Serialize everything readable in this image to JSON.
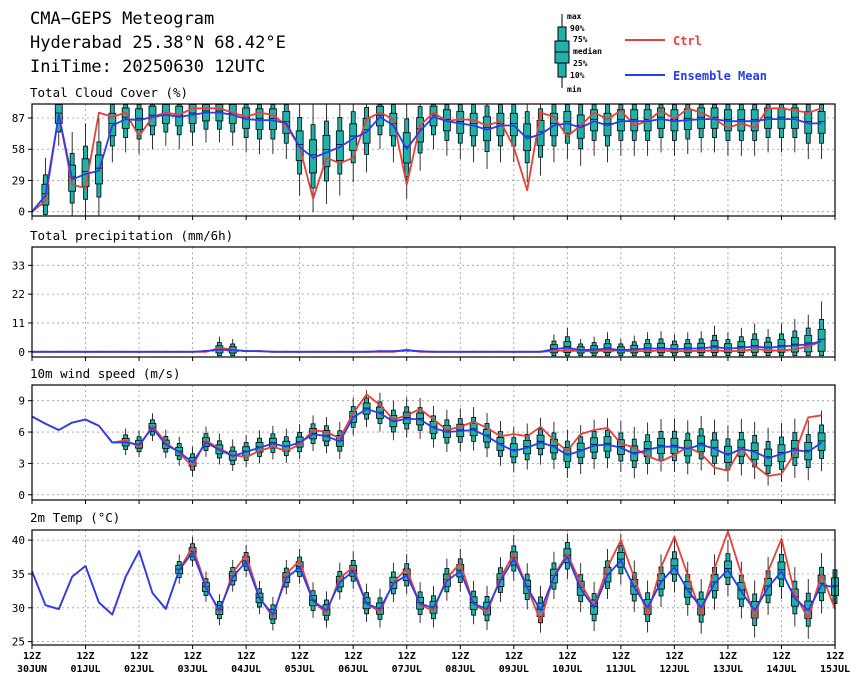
{
  "title": "CMA−GEPS Meteogram",
  "location": "Hyderabad 25.38°N 68.42°E",
  "init_time": "IniTime: 20250630 12UTC",
  "box_key": {
    "labels": [
      "max",
      "90%",
      "75%",
      "median",
      "25%",
      "10%",
      "min"
    ]
  },
  "legend": {
    "ctrl": {
      "label": "Ctrl",
      "color": "#e8403a"
    },
    "mean": {
      "label": "Ensemble Mean",
      "color": "#2a3cf0"
    }
  },
  "colors": {
    "box": "#20b2aa",
    "box_edge": "#000000",
    "grid": "#9a9a9a"
  },
  "x_axis": {
    "labels": [
      {
        "top": "12Z",
        "bottom": "30JUN"
      },
      {
        "top": "12Z",
        "bottom": "01JUL"
      },
      {
        "top": "12Z",
        "bottom": "02JUL"
      },
      {
        "top": "12Z",
        "bottom": "03JUL"
      },
      {
        "top": "12Z",
        "bottom": "04JUL"
      },
      {
        "top": "12Z",
        "bottom": "05JUL"
      },
      {
        "top": "12Z",
        "bottom": "06JUL"
      },
      {
        "top": "12Z",
        "bottom": "07JUL"
      },
      {
        "top": "12Z",
        "bottom": "08JUL"
      },
      {
        "top": "12Z",
        "bottom": "09JUL"
      },
      {
        "top": "12Z",
        "bottom": "10JUL"
      },
      {
        "top": "12Z",
        "bottom": "11JUL"
      },
      {
        "top": "12Z",
        "bottom": "12JUL"
      },
      {
        "top": "12Z",
        "bottom": "13JUL"
      },
      {
        "top": "12Z",
        "bottom": "14JUL"
      },
      {
        "top": "12Z",
        "bottom": "15JUL"
      }
    ]
  },
  "chart_data": [
    {
      "type": "box",
      "title": "Total Cloud Cover (%)",
      "ylim": [
        -4,
        100
      ],
      "yticks": [
        0,
        29,
        58,
        87
      ],
      "x_step_hours": 6,
      "first_box_step": 1,
      "series": [
        {
          "name": "Ctrl",
          "values": [
            0,
            10,
            90,
            25,
            22,
            92,
            88,
            92,
            70,
            88,
            92,
            90,
            96,
            96,
            96,
            92,
            88,
            92,
            90,
            80,
            60,
            12,
            50,
            45,
            50,
            86,
            92,
            86,
            25,
            80,
            92,
            84,
            86,
            85,
            80,
            84,
            60,
            20,
            92,
            88,
            70,
            80,
            92,
            86,
            94,
            80,
            84,
            94,
            86,
            96,
            92,
            86,
            78,
            82,
            78,
            96,
            96,
            94,
            92,
            96
          ]
        },
        {
          "name": "Ensemble Mean",
          "values": [
            0,
            15,
            90,
            30,
            35,
            38,
            80,
            86,
            85,
            88,
            90,
            88,
            90,
            92,
            92,
            90,
            86,
            85,
            85,
            82,
            60,
            50,
            55,
            60,
            68,
            74,
            88,
            80,
            58,
            75,
            88,
            84,
            82,
            80,
            76,
            80,
            80,
            68,
            72,
            80,
            82,
            78,
            84,
            80,
            84,
            84,
            84,
            86,
            84,
            85,
            86,
            86,
            84,
            84,
            84,
            86,
            86,
            86,
            82,
            82
          ]
        }
      ]
    },
    {
      "type": "box",
      "title": "Total precipitation (mm/6h)",
      "ylim": [
        -2,
        40
      ],
      "yticks": [
        0,
        11,
        22,
        33
      ],
      "x_step_hours": 6,
      "first_box_step": 1,
      "series": [
        {
          "name": "Ctrl",
          "values": [
            0,
            0,
            0,
            0,
            0,
            0,
            0,
            0,
            0,
            0,
            0,
            0,
            0,
            0,
            1.5,
            0.8,
            0.2,
            0.3,
            0,
            0,
            0,
            0,
            0,
            0,
            0,
            0,
            0,
            0,
            0.8,
            0,
            0,
            0,
            0,
            0,
            0,
            0,
            0,
            0,
            0,
            0.3,
            0.6,
            0.2,
            0.2,
            0.5,
            0.4,
            0.2,
            0.3,
            0.5,
            0.2,
            0.2,
            0.4,
            0.5,
            0.3,
            0.3,
            1.0,
            0.6,
            0.4,
            1.0,
            2.0,
            4.0
          ]
        },
        {
          "name": "Ensemble Mean",
          "values": [
            0,
            0,
            0,
            0,
            0,
            0,
            0,
            0,
            0,
            0,
            0,
            0,
            0,
            0.3,
            0.8,
            0.6,
            0.3,
            0.2,
            0,
            0,
            0,
            0,
            0,
            0,
            0,
            0,
            0.2,
            0.2,
            0.5,
            0.2,
            0,
            0,
            0,
            0,
            0,
            0,
            0,
            0,
            0,
            1.0,
            1.6,
            0.6,
            0.8,
            1.2,
            0.6,
            0.9,
            1.2,
            1.3,
            1.0,
            1.2,
            1.3,
            1.8,
            1.2,
            1.6,
            2.0,
            1.5,
            2.0,
            2.4,
            2.8,
            4.0
          ]
        }
      ]
    },
    {
      "type": "box",
      "title": "10m wind speed (m/s)",
      "ylim": [
        -0.5,
        10.5
      ],
      "yticks": [
        0,
        3,
        6,
        9
      ],
      "x_step_hours": 6,
      "first_box_step": 7,
      "series": [
        {
          "name": "Ctrl",
          "values": [
            7.5,
            6.8,
            6.2,
            6.9,
            7.2,
            6.6,
            5.0,
            5.2,
            4.6,
            6.6,
            5.0,
            4.0,
            2.7,
            5.2,
            4.4,
            3.8,
            3.6,
            4.2,
            4.6,
            4.2,
            4.8,
            6.2,
            6.0,
            5.4,
            7.8,
            9.6,
            8.6,
            7.2,
            7.6,
            8.2,
            7.2,
            6.2,
            6.5,
            7.0,
            6.4,
            5.6,
            5.8,
            5.6,
            6.5,
            5.2,
            4.2,
            5.8,
            6.2,
            6.4,
            4.9,
            4.5,
            3.7,
            3.2,
            3.8,
            4.6,
            3.9,
            2.6,
            2.3,
            4.5,
            2.8,
            1.8,
            2.0,
            4.0,
            7.4,
            7.6
          ]
        },
        {
          "name": "Ensemble Mean",
          "values": [
            7.5,
            6.8,
            6.2,
            6.9,
            7.2,
            6.6,
            5.0,
            5.0,
            4.8,
            6.4,
            4.8,
            4.1,
            3.1,
            5.0,
            4.3,
            3.7,
            4.1,
            4.5,
            4.9,
            4.6,
            5.0,
            5.8,
            5.6,
            5.1,
            7.4,
            8.2,
            7.8,
            7.0,
            7.3,
            7.2,
            6.4,
            6.0,
            6.1,
            6.2,
            5.6,
            4.8,
            4.2,
            4.5,
            5.0,
            4.6,
            3.8,
            4.2,
            4.7,
            4.8,
            4.5,
            3.9,
            4.3,
            4.6,
            4.6,
            4.4,
            4.8,
            4.4,
            3.8,
            4.4,
            4.1,
            3.5,
            3.9,
            4.3,
            4.1,
            5.0
          ]
        }
      ]
    },
    {
      "type": "box",
      "title": "2m Temp (°C)",
      "ylim": [
        24.5,
        41.5
      ],
      "yticks": [
        25,
        30,
        35,
        40
      ],
      "x_step_hours": 6,
      "first_box_step": 11,
      "series": [
        {
          "name": "Ctrl",
          "values": [
            35.4,
            30.4,
            29.8,
            34.6,
            36.2,
            30.8,
            29.0,
            34.6,
            38.4,
            32.2,
            29.9,
            35.6,
            39.0,
            33.2,
            29.3,
            35.2,
            37.8,
            31.5,
            28.6,
            35.0,
            37.0,
            31.0,
            29.2,
            34.4,
            36.0,
            30.6,
            29.4,
            33.8,
            35.8,
            30.4,
            29.6,
            34.4,
            36.6,
            30.6,
            29.3,
            34.4,
            38.0,
            33.0,
            28.0,
            34.8,
            38.0,
            33.6,
            30.2,
            36.0,
            40.0,
            34.4,
            29.0,
            36.0,
            40.5,
            34.8,
            29.0,
            35.8,
            41.3,
            35.0,
            28.4,
            35.4,
            40.2,
            32.0,
            28.4,
            35.0,
            29.8
          ]
        },
        {
          "name": "Ensemble Mean",
          "values": [
            35.4,
            30.4,
            29.8,
            34.6,
            36.2,
            30.8,
            29.0,
            34.6,
            38.4,
            32.2,
            29.8,
            35.6,
            38.2,
            33.0,
            29.6,
            34.6,
            36.8,
            31.4,
            29.0,
            34.4,
            36.0,
            31.0,
            29.6,
            33.8,
            35.4,
            30.6,
            29.8,
            33.6,
            34.8,
            30.6,
            30.0,
            34.0,
            35.4,
            30.6,
            29.8,
            34.0,
            37.2,
            33.0,
            29.6,
            34.6,
            37.6,
            32.8,
            30.0,
            34.8,
            37.0,
            33.0,
            30.0,
            33.8,
            36.0,
            32.6,
            30.0,
            33.6,
            35.6,
            32.4,
            29.6,
            33.0,
            35.4,
            31.4,
            29.6,
            33.4,
            33.0
          ]
        }
      ]
    }
  ]
}
